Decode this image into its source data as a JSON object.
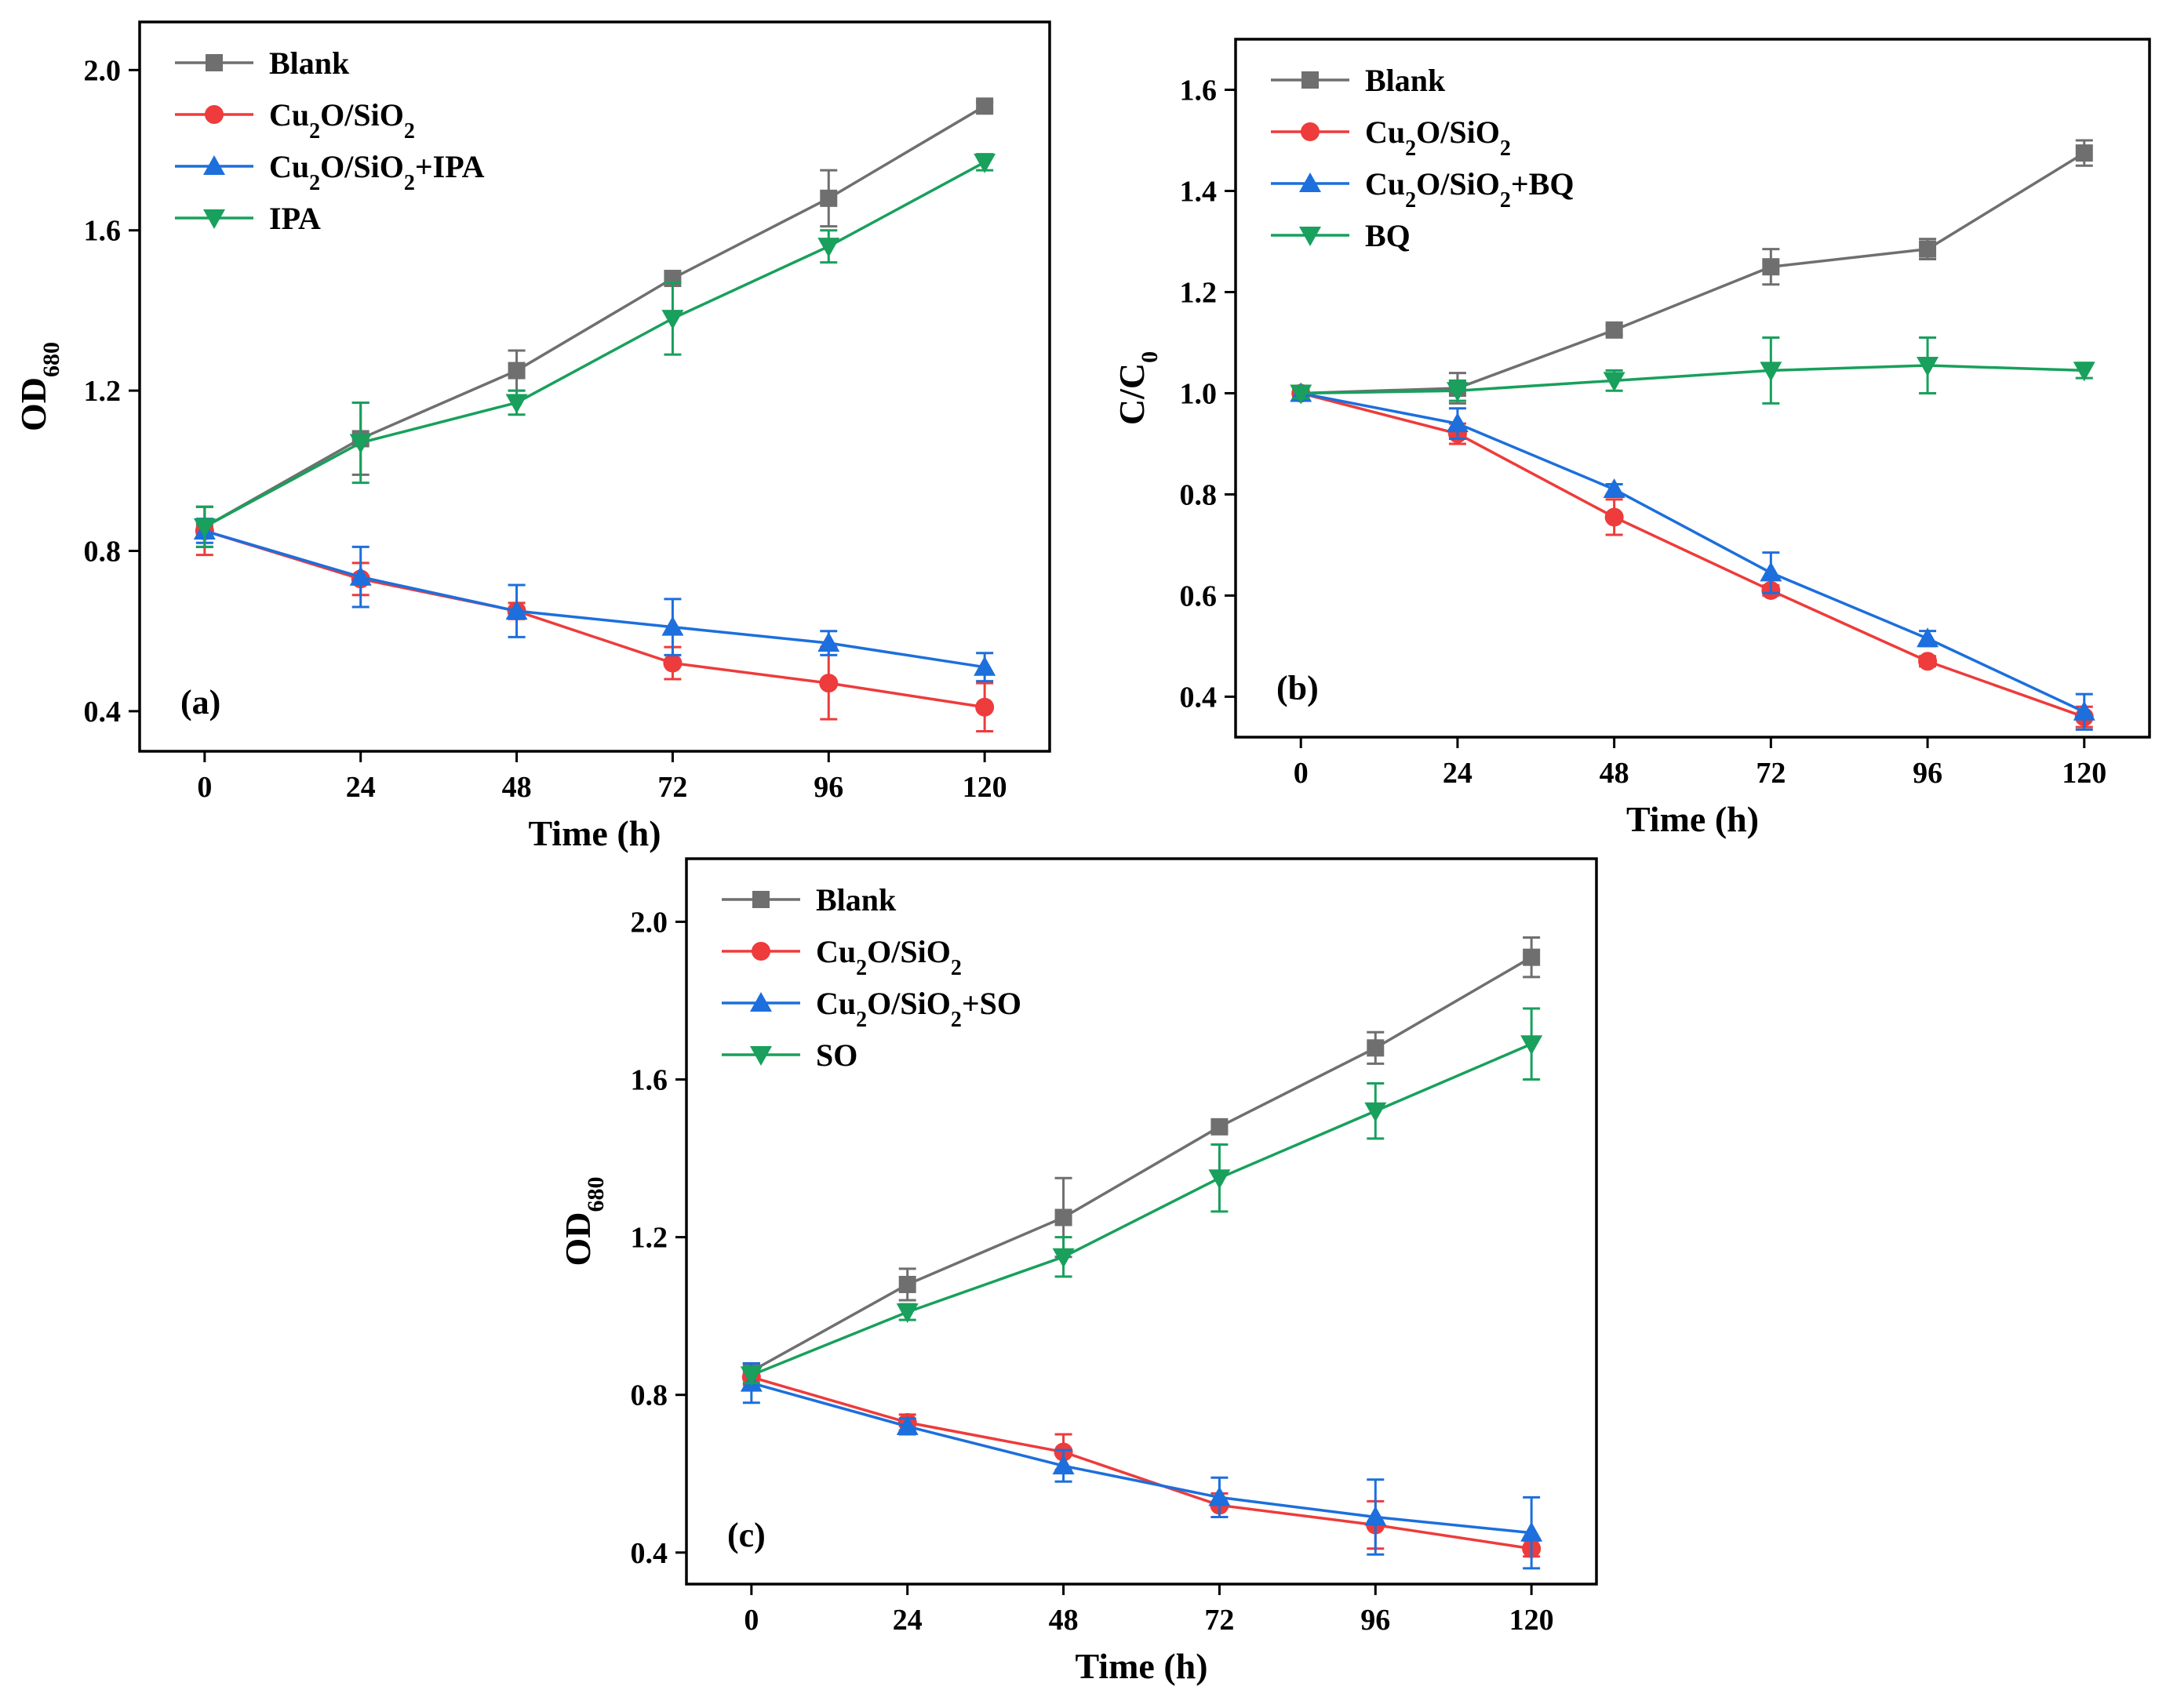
{
  "chart_data": [
    {
      "id": "a",
      "type": "line",
      "panel_label": "(a)",
      "xlabel": "Time (h)",
      "ylabel": "OD",
      "ylabel_sub": "680",
      "x": [
        0,
        24,
        48,
        72,
        96,
        120
      ],
      "xticks": [
        0,
        24,
        48,
        72,
        96,
        120
      ],
      "yticks": [
        0.4,
        0.8,
        1.2,
        1.6,
        2.0
      ],
      "yticklabels": [
        "0.4",
        "0.8",
        "1.2",
        "1.6",
        "2.0"
      ],
      "xlim": [
        -10,
        130
      ],
      "ylim": [
        0.3,
        2.12
      ],
      "legend_position": "top-left",
      "series": [
        {
          "name": "Blank",
          "legend": [
            {
              "t": "Blank"
            }
          ],
          "color": "#6f6f6f",
          "marker": "square",
          "values": [
            0.86,
            1.08,
            1.25,
            1.48,
            1.68,
            1.91
          ],
          "errors": [
            0.05,
            0.09,
            0.05,
            0.01,
            0.07,
            0.01
          ]
        },
        {
          "name": "Cu2O/SiO2",
          "legend": [
            {
              "t": "Cu"
            },
            {
              "t": "2",
              "s": 1
            },
            {
              "t": "O/SiO"
            },
            {
              "t": "2",
              "s": 1
            }
          ],
          "color": "#ee3b3b",
          "marker": "circle",
          "values": [
            0.85,
            0.73,
            0.65,
            0.52,
            0.47,
            0.41
          ],
          "errors": [
            0.06,
            0.04,
            0.02,
            0.04,
            0.09,
            0.06
          ]
        },
        {
          "name": "Cu2O/SiO2+IPA",
          "legend": [
            {
              "t": "Cu"
            },
            {
              "t": "2",
              "s": 1
            },
            {
              "t": "O/SiO"
            },
            {
              "t": "2",
              "s": 1
            },
            {
              "t": "+IPA"
            }
          ],
          "color": "#1c6fdc",
          "marker": "triangle-up",
          "values": [
            0.85,
            0.735,
            0.65,
            0.61,
            0.57,
            0.51
          ],
          "errors": [
            0.03,
            0.075,
            0.065,
            0.07,
            0.03,
            0.035
          ]
        },
        {
          "name": "IPA",
          "legend": [
            {
              "t": "IPA"
            }
          ],
          "color": "#18a05c",
          "marker": "triangle-down",
          "values": [
            0.86,
            1.07,
            1.17,
            1.38,
            1.56,
            1.77
          ],
          "errors": [
            0.05,
            0.1,
            0.03,
            0.09,
            0.04,
            0.02
          ]
        }
      ]
    },
    {
      "id": "b",
      "type": "line",
      "panel_label": "(b)",
      "xlabel": "Time (h)",
      "ylabel": "C/C",
      "ylabel_sub": "0",
      "x": [
        0,
        24,
        48,
        72,
        96,
        120
      ],
      "xticks": [
        0,
        24,
        48,
        72,
        96,
        120
      ],
      "yticks": [
        0.4,
        0.6,
        0.8,
        1.0,
        1.2,
        1.4,
        1.6
      ],
      "yticklabels": [
        "0.4",
        "0.6",
        "0.8",
        "1.0",
        "1.2",
        "1.4",
        "1.6"
      ],
      "xlim": [
        -10,
        130
      ],
      "ylim": [
        0.32,
        1.7
      ],
      "legend_position": "top-left",
      "series": [
        {
          "name": "Blank",
          "legend": [
            {
              "t": "Blank"
            }
          ],
          "color": "#6f6f6f",
          "marker": "square",
          "values": [
            1.0,
            1.01,
            1.125,
            1.25,
            1.285,
            1.475
          ],
          "errors": [
            0.01,
            0.03,
            0.01,
            0.035,
            0.02,
            0.025
          ]
        },
        {
          "name": "Cu2O/SiO2",
          "legend": [
            {
              "t": "Cu"
            },
            {
              "t": "2",
              "s": 1
            },
            {
              "t": "O/SiO"
            },
            {
              "t": "2",
              "s": 1
            }
          ],
          "color": "#ee3b3b",
          "marker": "circle",
          "values": [
            1.0,
            0.92,
            0.755,
            0.61,
            0.47,
            0.36
          ],
          "errors": [
            0.01,
            0.02,
            0.035,
            0.01,
            0.01,
            0.02
          ]
        },
        {
          "name": "Cu2O/SiO2+BQ",
          "legend": [
            {
              "t": "Cu"
            },
            {
              "t": "2",
              "s": 1
            },
            {
              "t": "O/SiO"
            },
            {
              "t": "2",
              "s": 1
            },
            {
              "t": "+BQ"
            }
          ],
          "color": "#1c6fdc",
          "marker": "triangle-up",
          "values": [
            1.0,
            0.94,
            0.81,
            0.645,
            0.515,
            0.37
          ],
          "errors": [
            0.01,
            0.03,
            0.01,
            0.04,
            0.015,
            0.035
          ]
        },
        {
          "name": "BQ",
          "legend": [
            {
              "t": "BQ"
            }
          ],
          "color": "#18a05c",
          "marker": "triangle-down",
          "values": [
            1.0,
            1.005,
            1.025,
            1.045,
            1.055,
            1.045
          ],
          "errors": [
            0.01,
            0.02,
            0.02,
            0.065,
            0.055,
            0.015
          ]
        }
      ]
    },
    {
      "id": "c",
      "type": "line",
      "panel_label": "(c)",
      "xlabel": "Time (h)",
      "ylabel": "OD",
      "ylabel_sub": "680",
      "x": [
        0,
        24,
        48,
        72,
        96,
        120
      ],
      "xticks": [
        0,
        24,
        48,
        72,
        96,
        120
      ],
      "yticks": [
        0.4,
        0.8,
        1.2,
        1.6,
        2.0
      ],
      "yticklabels": [
        "0.4",
        "0.8",
        "1.2",
        "1.6",
        "2.0"
      ],
      "xlim": [
        -10,
        130
      ],
      "ylim": [
        0.32,
        2.16
      ],
      "legend_position": "top-left",
      "series": [
        {
          "name": "Blank",
          "legend": [
            {
              "t": "Blank"
            }
          ],
          "color": "#6f6f6f",
          "marker": "square",
          "values": [
            0.86,
            1.08,
            1.25,
            1.48,
            1.68,
            1.91
          ],
          "errors": [
            0.02,
            0.04,
            0.1,
            0.01,
            0.04,
            0.05
          ]
        },
        {
          "name": "Cu2O/SiO2",
          "legend": [
            {
              "t": "Cu"
            },
            {
              "t": "2",
              "s": 1
            },
            {
              "t": "O/SiO"
            },
            {
              "t": "2",
              "s": 1
            }
          ],
          "color": "#ee3b3b",
          "marker": "circle",
          "values": [
            0.845,
            0.73,
            0.655,
            0.52,
            0.47,
            0.41
          ],
          "errors": [
            0.02,
            0.02,
            0.045,
            0.03,
            0.06,
            0.02
          ]
        },
        {
          "name": "Cu2O/SiO2+SO",
          "legend": [
            {
              "t": "Cu"
            },
            {
              "t": "2",
              "s": 1
            },
            {
              "t": "O/SiO"
            },
            {
              "t": "2",
              "s": 1
            },
            {
              "t": "+SO"
            }
          ],
          "color": "#1c6fdc",
          "marker": "triangle-up",
          "values": [
            0.83,
            0.72,
            0.62,
            0.54,
            0.49,
            0.45
          ],
          "errors": [
            0.05,
            0.02,
            0.04,
            0.05,
            0.095,
            0.09
          ]
        },
        {
          "name": "SO",
          "legend": [
            {
              "t": "SO"
            }
          ],
          "color": "#18a05c",
          "marker": "triangle-down",
          "values": [
            0.85,
            1.01,
            1.15,
            1.35,
            1.52,
            1.69
          ],
          "errors": [
            0.02,
            0.02,
            0.05,
            0.085,
            0.07,
            0.09
          ]
        }
      ]
    }
  ]
}
